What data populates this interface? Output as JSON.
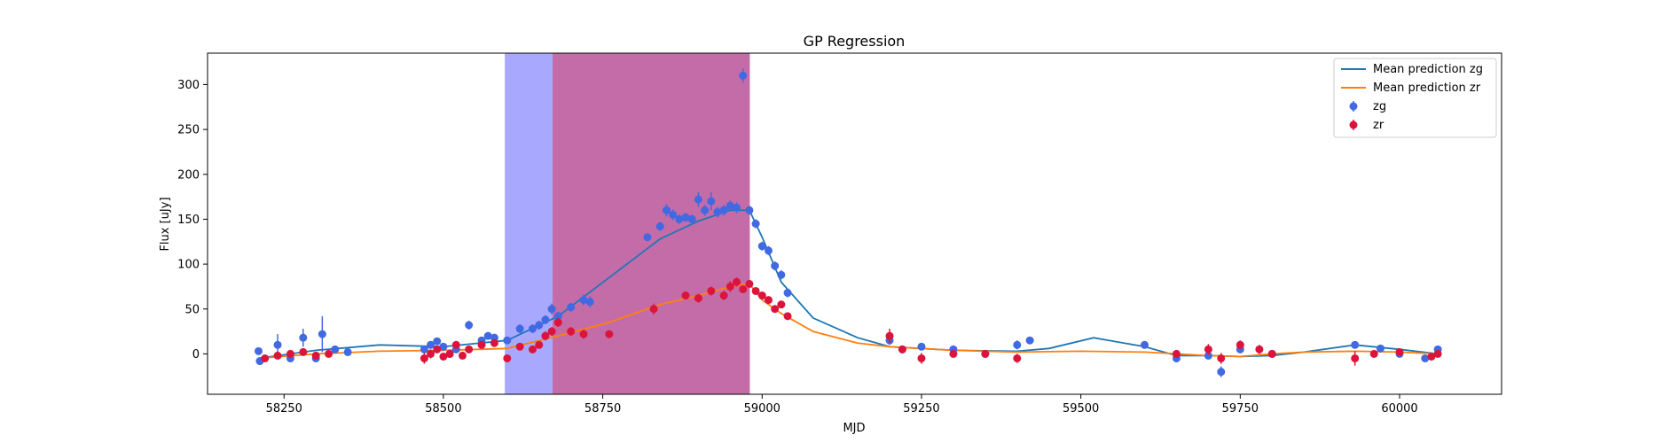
{
  "chart_data": {
    "type": "scatter",
    "title": "GP Regression",
    "xlabel": "MJD",
    "ylabel": "Flux [uJy]",
    "xlim": [
      58130,
      60160
    ],
    "ylim": [
      -45,
      335
    ],
    "xticks": [
      58250,
      58500,
      58750,
      59000,
      59250,
      59500,
      59750,
      60000
    ],
    "yticks": [
      0,
      50,
      100,
      150,
      200,
      250,
      300
    ],
    "grid": false,
    "legend_placement": "top-right",
    "shaded_regions": [
      {
        "x0": 58597,
        "x1": 58672,
        "color": "#a8a8ff"
      },
      {
        "x0": 58672,
        "x1": 58980,
        "color": "#c46ca8"
      }
    ],
    "series": [
      {
        "name": "Mean prediction zg",
        "kind": "line",
        "color": "#1f77b4",
        "x": [
          58210,
          58300,
          58400,
          58500,
          58600,
          58680,
          58760,
          58840,
          58900,
          58950,
          58980,
          59000,
          59030,
          59080,
          59150,
          59200,
          59300,
          59400,
          59450,
          59520,
          59600,
          59650,
          59700,
          59750,
          59800,
          59850,
          59930,
          60000,
          60060
        ],
        "y": [
          -5,
          4,
          10,
          8,
          15,
          42,
          85,
          128,
          148,
          160,
          160,
          130,
          80,
          40,
          18,
          8,
          4,
          3,
          6,
          18,
          8,
          -2,
          -2,
          -3,
          -2,
          2,
          10,
          5,
          0
        ]
      },
      {
        "name": "Mean prediction zr",
        "kind": "line",
        "color": "#ff7f0e",
        "x": [
          58210,
          58300,
          58400,
          58500,
          58600,
          58680,
          58760,
          58840,
          58900,
          58950,
          58980,
          59000,
          59030,
          59080,
          59150,
          59200,
          59300,
          59400,
          59500,
          59600,
          59650,
          59700,
          59750,
          59800,
          59850,
          59930,
          60000,
          60060
        ],
        "y": [
          -5,
          0,
          3,
          4,
          6,
          20,
          35,
          55,
          65,
          75,
          78,
          60,
          45,
          25,
          12,
          8,
          4,
          2,
          3,
          2,
          0,
          -2,
          -3,
          0,
          2,
          3,
          2,
          0
        ]
      },
      {
        "name": "zg",
        "kind": "errorbar",
        "color": "#4169e1",
        "x": [
          58210,
          58212,
          58240,
          58260,
          58280,
          58300,
          58310,
          58330,
          58350,
          58470,
          58480,
          58490,
          58500,
          58510,
          58520,
          58540,
          58560,
          58570,
          58580,
          58600,
          58620,
          58640,
          58650,
          58660,
          58670,
          58680,
          58700,
          58720,
          58730,
          58820,
          58840,
          58850,
          58860,
          58870,
          58880,
          58890,
          58900,
          58910,
          58920,
          58930,
          58940,
          58950,
          58960,
          58970,
          58980,
          58990,
          59000,
          59010,
          59020,
          59030,
          59040,
          59200,
          59220,
          59250,
          59300,
          59350,
          59400,
          59420,
          59600,
          59650,
          59700,
          59720,
          59750,
          59800,
          59930,
          59970,
          60000,
          60040,
          60060
        ],
        "y": [
          3,
          -8,
          10,
          -5,
          18,
          -5,
          22,
          5,
          2,
          5,
          10,
          14,
          8,
          0,
          5,
          32,
          15,
          20,
          18,
          15,
          28,
          28,
          32,
          38,
          50,
          42,
          52,
          60,
          58,
          130,
          142,
          160,
          155,
          150,
          152,
          150,
          172,
          160,
          170,
          158,
          160,
          165,
          163,
          310,
          160,
          145,
          120,
          115,
          98,
          88,
          68,
          15,
          5,
          8,
          5,
          0,
          10,
          15,
          10,
          -5,
          -2,
          -20,
          5,
          0,
          10,
          6,
          0,
          -5,
          5
        ],
        "yerr": [
          4,
          4,
          12,
          4,
          10,
          4,
          20,
          4,
          4,
          4,
          4,
          4,
          4,
          4,
          4,
          5,
          4,
          4,
          4,
          4,
          5,
          5,
          5,
          5,
          6,
          5,
          5,
          6,
          6,
          4,
          5,
          7,
          6,
          5,
          5,
          5,
          8,
          6,
          10,
          6,
          6,
          6,
          6,
          8,
          5,
          5,
          5,
          5,
          5,
          5,
          5,
          5,
          4,
          4,
          4,
          4,
          5,
          4,
          4,
          4,
          4,
          6,
          4,
          4,
          4,
          4,
          4,
          4,
          4
        ]
      },
      {
        "name": "zr",
        "kind": "errorbar",
        "color": "#dc143c",
        "x": [
          58220,
          58240,
          58260,
          58280,
          58300,
          58320,
          58470,
          58480,
          58490,
          58500,
          58510,
          58520,
          58530,
          58540,
          58560,
          58580,
          58600,
          58620,
          58640,
          58650,
          58660,
          58670,
          58680,
          58700,
          58720,
          58760,
          58830,
          58880,
          58900,
          58920,
          58940,
          58950,
          58960,
          58970,
          58980,
          58990,
          59000,
          59010,
          59020,
          59030,
          59040,
          59200,
          59220,
          59250,
          59300,
          59350,
          59400,
          59650,
          59700,
          59720,
          59750,
          59780,
          59800,
          59930,
          59960,
          60000,
          60050,
          60060
        ],
        "y": [
          -5,
          -2,
          0,
          2,
          -2,
          0,
          -5,
          0,
          5,
          -3,
          0,
          10,
          -2,
          5,
          10,
          12,
          -5,
          8,
          5,
          10,
          20,
          25,
          35,
          25,
          22,
          22,
          50,
          65,
          62,
          70,
          65,
          75,
          80,
          72,
          78,
          70,
          65,
          60,
          50,
          55,
          42,
          20,
          5,
          -5,
          0,
          0,
          -5,
          0,
          5,
          -5,
          10,
          5,
          0,
          -5,
          0,
          2,
          -3,
          0
        ],
        "yerr": [
          4,
          4,
          4,
          4,
          4,
          4,
          6,
          5,
          4,
          4,
          4,
          4,
          4,
          4,
          4,
          4,
          4,
          4,
          4,
          4,
          5,
          5,
          5,
          5,
          5,
          4,
          6,
          4,
          5,
          5,
          5,
          6,
          5,
          4,
          4,
          4,
          4,
          4,
          4,
          4,
          4,
          8,
          4,
          6,
          4,
          4,
          5,
          4,
          6,
          6,
          5,
          5,
          4,
          8,
          4,
          4,
          4,
          4
        ]
      }
    ]
  }
}
